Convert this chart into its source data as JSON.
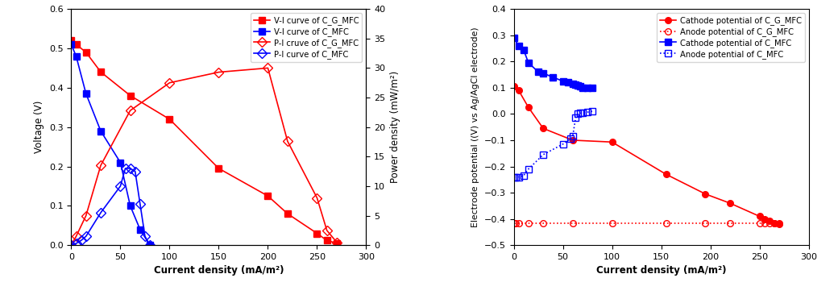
{
  "left": {
    "vi_CGM_x": [
      0,
      5,
      15,
      30,
      60,
      100,
      150,
      200,
      220,
      250,
      260,
      270
    ],
    "vi_CGM_y": [
      0.52,
      0.51,
      0.49,
      0.44,
      0.38,
      0.32,
      0.195,
      0.125,
      0.08,
      0.03,
      0.012,
      0.005
    ],
    "vi_CM_x": [
      0,
      5,
      15,
      30,
      50,
      60,
      70,
      80
    ],
    "vi_CM_y": [
      0.51,
      0.48,
      0.385,
      0.29,
      0.21,
      0.1,
      0.04,
      0.0
    ],
    "pi_CGM_x": [
      0,
      5,
      15,
      30,
      60,
      100,
      150,
      200,
      220,
      250,
      260,
      270
    ],
    "pi_CGM_y": [
      0.0,
      1.5,
      5.0,
      13.5,
      22.8,
      27.5,
      29.3,
      30.0,
      17.6,
      8.0,
      2.5,
      0.5
    ],
    "pi_CM_x": [
      0,
      5,
      10,
      15,
      30,
      50,
      55,
      60,
      65,
      70,
      75,
      80
    ],
    "pi_CM_y": [
      0.0,
      0.3,
      0.8,
      1.5,
      5.5,
      10.0,
      13.0,
      13.0,
      12.5,
      7.0,
      1.5,
      0.0
    ],
    "xlabel": "Current density (mA/m²)",
    "ylabel_left": "Voltage (V)",
    "ylabel_right": "Power density (mW/m²)",
    "xlim": [
      0,
      300
    ],
    "ylim_left": [
      0,
      0.6
    ],
    "ylim_right": [
      0,
      40
    ],
    "yticks_left": [
      0.0,
      0.1,
      0.2,
      0.3,
      0.4,
      0.5,
      0.6
    ],
    "yticks_right": [
      0,
      5,
      10,
      15,
      20,
      25,
      30,
      35,
      40
    ],
    "xticks": [
      0,
      50,
      100,
      150,
      200,
      250,
      300
    ],
    "legend": [
      "V-I curve of C_G_MFC",
      "V-I curve of C_MFC",
      "P-I cruve of C_G_MFC",
      "P-I curve of C_MFC"
    ]
  },
  "right": {
    "cathode_CGM_x": [
      0,
      5,
      15,
      30,
      60,
      100,
      155,
      195,
      220,
      250,
      255,
      260,
      265,
      270
    ],
    "cathode_CGM_y": [
      0.105,
      0.09,
      0.025,
      -0.055,
      -0.1,
      -0.107,
      -0.23,
      -0.305,
      -0.34,
      -0.39,
      -0.4,
      -0.408,
      -0.415,
      -0.42
    ],
    "anode_CGM_x": [
      0,
      2,
      5,
      15,
      30,
      60,
      100,
      155,
      195,
      220,
      250,
      255,
      260,
      265,
      270
    ],
    "anode_CGM_y": [
      -0.415,
      -0.415,
      -0.415,
      -0.415,
      -0.415,
      -0.415,
      -0.415,
      -0.415,
      -0.415,
      -0.415,
      -0.415,
      -0.415,
      -0.415,
      -0.415,
      -0.415
    ],
    "cathode_CM_x": [
      0,
      5,
      10,
      15,
      25,
      30,
      40,
      50,
      55,
      60,
      63,
      65,
      68,
      70,
      75,
      80
    ],
    "cathode_CM_y": [
      0.29,
      0.26,
      0.245,
      0.195,
      0.16,
      0.155,
      0.14,
      0.125,
      0.12,
      0.115,
      0.113,
      0.11,
      0.105,
      0.1,
      0.1,
      0.1
    ],
    "anode_CM_x": [
      0,
      2,
      5,
      10,
      15,
      30,
      50,
      58,
      60,
      63,
      65,
      68,
      70,
      75,
      80
    ],
    "anode_CM_y": [
      -0.24,
      -0.24,
      -0.24,
      -0.235,
      -0.21,
      -0.155,
      -0.115,
      -0.095,
      -0.085,
      -0.015,
      0.0,
      0.003,
      0.005,
      0.007,
      0.01
    ],
    "xlabel": "Current density (mA/m²)",
    "ylabel": "Electrode potential ((V) vs Ag/AgCl electrode)",
    "xlim": [
      0,
      300
    ],
    "ylim": [
      -0.5,
      0.4
    ],
    "yticks": [
      -0.5,
      -0.4,
      -0.3,
      -0.2,
      -0.1,
      0.0,
      0.1,
      0.2,
      0.3,
      0.4
    ],
    "xticks": [
      0,
      50,
      100,
      150,
      200,
      250,
      300
    ],
    "legend": [
      "Cathode potential of C_G_MFC",
      "Anode potential of C_G_MFC",
      "Cathode potential of C_MFC",
      "Anode potential of C_MFC"
    ]
  }
}
